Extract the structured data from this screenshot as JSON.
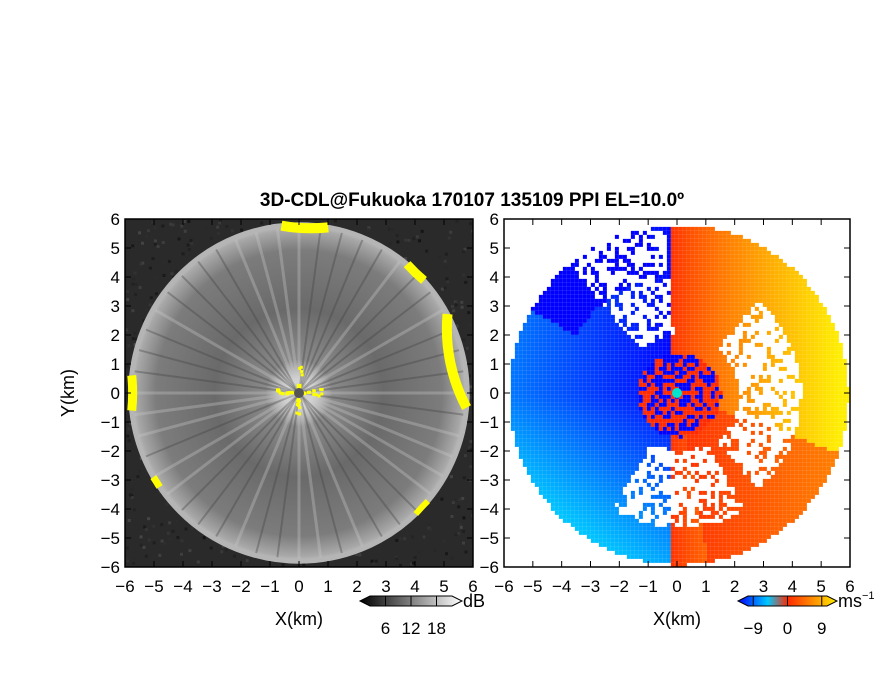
{
  "chart_data": [
    {
      "type": "heatmap",
      "title": "3D-CDL@Fukuoka 170107 135109 PPI EL=10.0º",
      "xlabel": "X(km)",
      "ylabel": "Y(km)",
      "xlim": [
        -6,
        6
      ],
      "ylim": [
        -6,
        6
      ],
      "x_ticks": [
        "−6",
        "−5",
        "−4",
        "−3",
        "−2",
        "−1",
        "0",
        "1",
        "2",
        "3",
        "4",
        "5",
        "6"
      ],
      "y_ticks": [
        "6",
        "5",
        "4",
        "3",
        "2",
        "1",
        "0",
        "−1",
        "−2",
        "−3",
        "−4",
        "−5",
        "−6"
      ],
      "field": "signal-to-noise (grayscale)",
      "observation_radius_km": 5.8,
      "colorbar": {
        "unit": "dB",
        "ticks": [
          "6",
          "12",
          "18"
        ],
        "range": [
          0,
          24
        ]
      },
      "highlight_color": "#ffff00"
    },
    {
      "type": "heatmap",
      "xlabel": "X(km)",
      "xlim": [
        -6,
        6
      ],
      "ylim": [
        -6,
        6
      ],
      "x_ticks": [
        "−6",
        "−5",
        "−4",
        "−3",
        "−2",
        "−1",
        "0",
        "1",
        "2",
        "3",
        "4",
        "5",
        "6"
      ],
      "y_ticks": [
        "6",
        "5",
        "4",
        "3",
        "2",
        "1",
        "0",
        "−1",
        "−2",
        "−3",
        "−4",
        "−5",
        "−6"
      ],
      "field": "radial velocity",
      "colorbar": {
        "unit": "ms",
        "unit_exp": "−1",
        "ticks": [
          "−9",
          "0",
          "9"
        ],
        "range": [
          -13,
          13
        ]
      },
      "colors": {
        "neg_far": "#0000ff",
        "neg": "#00c8ff",
        "zero": "#ff2a00",
        "pos": "#ffee00"
      }
    }
  ]
}
